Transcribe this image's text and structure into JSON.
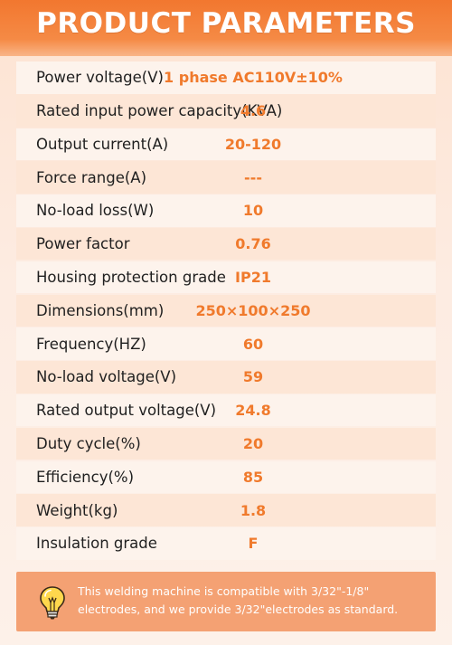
{
  "header": {
    "title": "PRODUCT PARAMETERS"
  },
  "params": [
    {
      "label": "Power voltage(V)",
      "value": "1 phase AC110V±10%"
    },
    {
      "label": "Rated input power capacity(KVA)",
      "value": "4.6"
    },
    {
      "label": "Output current(A)",
      "value": "20-120"
    },
    {
      "label": "Force range(A)",
      "value": "---"
    },
    {
      "label": "No-load loss(W)",
      "value": "10"
    },
    {
      "label": "Power factor",
      "value": "0.76"
    },
    {
      "label": "Housing protection grade",
      "value": "IP21"
    },
    {
      "label": "Dimensions(mm)",
      "value": "250×100×250"
    },
    {
      "label": "Frequency(HZ)",
      "value": "60"
    },
    {
      "label": "No-load voltage(V)",
      "value": "59"
    },
    {
      "label": "Rated output voltage(V)",
      "value": "24.8"
    },
    {
      "label": "Duty cycle(%)",
      "value": "20"
    },
    {
      "label": "Efficiency(%)",
      "value": "85"
    },
    {
      "label": "Weight(kg)",
      "value": "1.8"
    },
    {
      "label": "Insulation grade",
      "value": "F"
    }
  ],
  "note": {
    "icon": "lightbulb-icon",
    "text": "This welding machine is compatible with 3/32\"-1/8\" electrodes, and we provide 3/32\"electrodes as standard."
  },
  "colors": {
    "accent": "#f07a2c",
    "header": "#f2772f",
    "note_bg": "#f4a173",
    "row_light": "#fdf3ec",
    "row_dark": "#fde6d6"
  }
}
